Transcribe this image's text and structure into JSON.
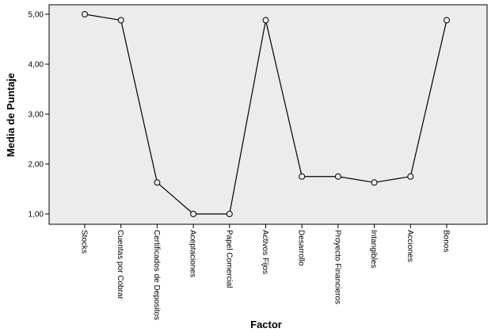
{
  "chart_data": {
    "type": "line",
    "xlabel": "Factor",
    "ylabel": "Media de Puntaje",
    "categories": [
      "Stocks",
      "Cuentas por Cobrar",
      "Certificados de Depositos",
      "Aceptaciones",
      "Papel Comercial",
      "Activos Fijos",
      "Desarrollo",
      "Proyecto Financieros",
      "Intangibles",
      "Acciones",
      "Bonos"
    ],
    "series": [
      {
        "values": [
          5.0,
          4.88,
          1.63,
          1.0,
          1.0,
          4.88,
          1.75,
          1.75,
          1.63,
          1.75,
          4.88
        ]
      }
    ],
    "ylim": [
      1.0,
      5.0
    ],
    "yticks": [
      "1,00",
      "2,00",
      "3,00",
      "4,00",
      "5,00"
    ],
    "grid": false,
    "plot_background": "#ececec",
    "line_color": "#000000",
    "marker": "open-circle"
  }
}
